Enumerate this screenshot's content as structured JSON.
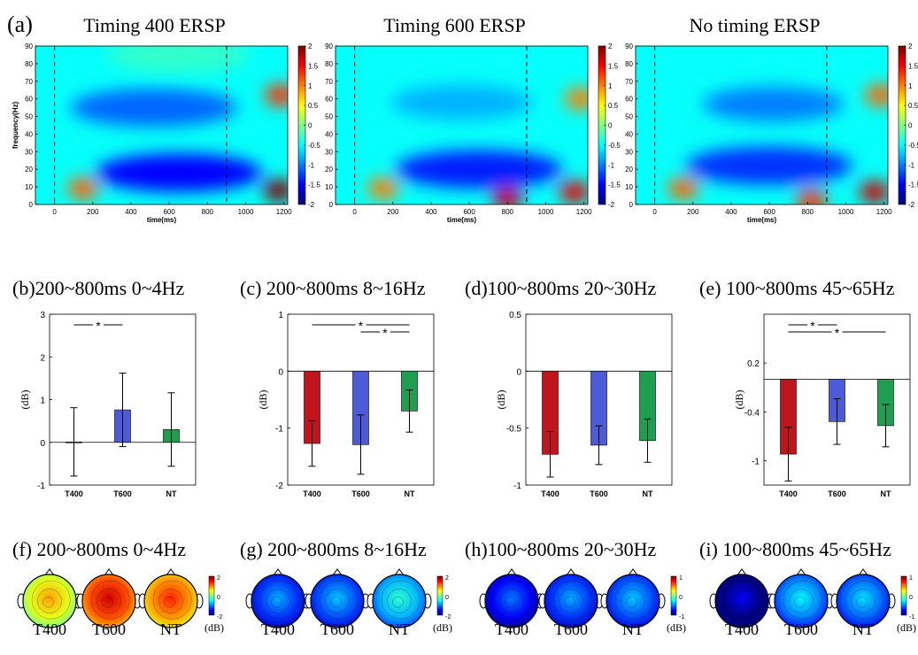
{
  "panel_a": {
    "letter": "(a)",
    "titles": [
      "Timing 400 ERSP",
      "Timing 600 ERSP",
      "No timing ERSP"
    ],
    "ylabel": "frequency(Hz)",
    "xlabel": "time(ms)",
    "xticks": [
      "0",
      "200",
      "400",
      "600",
      "800",
      "1000",
      "1200"
    ],
    "yticks": [
      "0",
      "10",
      "20",
      "30",
      "40",
      "50",
      "60",
      "70",
      "80",
      "90"
    ],
    "colorbar_ticks": [
      "2",
      "1.5",
      "1",
      "0.5",
      "0",
      "-0.5",
      "-1",
      "-1.5",
      "-2"
    ]
  },
  "chart_data": [
    {
      "type": "heatmap",
      "title": "Timing 400 ERSP",
      "xlabel": "time(ms)",
      "ylabel": "frequency(Hz)",
      "xlim": [
        -100,
        1220
      ],
      "ylim": [
        0,
        90
      ],
      "clim": [
        -2,
        2
      ],
      "markers_ms": [
        0,
        900
      ],
      "blobs": [
        {
          "t": 650,
          "f": 18,
          "value": -1.5
        },
        {
          "t": 520,
          "f": 55,
          "value": -1.1
        },
        {
          "t": 150,
          "f": 9,
          "value": 1.1
        },
        {
          "t": 1170,
          "f": 8,
          "value": 2.2
        },
        {
          "t": 1180,
          "f": 62,
          "value": 1.3
        },
        {
          "t": 650,
          "f": 85,
          "value": -0.3
        }
      ]
    },
    {
      "type": "heatmap",
      "title": "Timing 600 ERSP",
      "xlabel": "time(ms)",
      "ylabel": "frequency(Hz)",
      "xlim": [
        -100,
        1220
      ],
      "ylim": [
        0,
        90
      ],
      "clim": [
        -2,
        2
      ],
      "markers_ms": [
        0,
        900
      ],
      "blobs": [
        {
          "t": 650,
          "f": 20,
          "value": -1.4
        },
        {
          "t": 560,
          "f": 58,
          "value": -0.8
        },
        {
          "t": 150,
          "f": 9,
          "value": 1.0
        },
        {
          "t": 1150,
          "f": 7,
          "value": 1.6
        },
        {
          "t": 800,
          "f": 3,
          "value": 1.7
        },
        {
          "t": 1180,
          "f": 60,
          "value": 1.0
        }
      ]
    },
    {
      "type": "heatmap",
      "title": "No timing ERSP",
      "xlabel": "time(ms)",
      "ylabel": "frequency(Hz)",
      "xlim": [
        -100,
        1220
      ],
      "ylim": [
        0,
        90
      ],
      "clim": [
        -2,
        2
      ],
      "markers_ms": [
        0,
        900
      ],
      "blobs": [
        {
          "t": 600,
          "f": 22,
          "value": -1.3
        },
        {
          "t": 620,
          "f": 57,
          "value": -1.0
        },
        {
          "t": 150,
          "f": 9,
          "value": 1.1
        },
        {
          "t": 1150,
          "f": 7,
          "value": 1.7
        },
        {
          "t": 820,
          "f": 2,
          "value": 1.3
        },
        {
          "t": 1180,
          "f": 62,
          "value": 1.1
        }
      ]
    },
    {
      "type": "bar",
      "title": "(b)200~800ms 0~4Hz",
      "ylabel": "(dB)",
      "categories": [
        "T400",
        "T600",
        "NT"
      ],
      "values": [
        0.01,
        0.76,
        0.3
      ],
      "errors": [
        0.8,
        0.86,
        0.86
      ],
      "colors": [
        "#c0151d",
        "#4d5bd8",
        "#1e9e4f"
      ],
      "ylim": [
        -1,
        3
      ],
      "yticks": [
        "3",
        "2",
        "1",
        "0",
        "-1"
      ],
      "significance": [
        {
          "between": [
            "T400",
            "T600"
          ],
          "label": "*"
        }
      ]
    },
    {
      "type": "bar",
      "title": "(c) 200~800ms 8~16Hz",
      "ylabel": "(dB)",
      "categories": [
        "T400",
        "T600",
        "NT"
      ],
      "values": [
        -1.27,
        -1.29,
        -0.7
      ],
      "errors": [
        0.4,
        0.52,
        0.37
      ],
      "colors": [
        "#c0151d",
        "#4d5bd8",
        "#1e9e4f"
      ],
      "ylim": [
        -2,
        1
      ],
      "yticks": [
        "1",
        "0",
        "-1",
        "-2"
      ],
      "significance": [
        {
          "between": [
            "T400",
            "NT"
          ],
          "label": "*"
        },
        {
          "between": [
            "T600",
            "NT"
          ],
          "label": "*"
        }
      ]
    },
    {
      "type": "bar",
      "title": "(d)100~800ms 20~30Hz",
      "ylabel": "(dB)",
      "categories": [
        "T400",
        "T600",
        "NT"
      ],
      "values": [
        -0.73,
        -0.65,
        -0.61
      ],
      "errors": [
        0.2,
        0.17,
        0.19
      ],
      "colors": [
        "#c0151d",
        "#4d5bd8",
        "#1e9e4f"
      ],
      "ylim": [
        -1,
        0.5
      ],
      "yticks": [
        "0.5",
        "0",
        "-0.5",
        "-1"
      ],
      "significance": []
    },
    {
      "type": "bar",
      "title": "(e) 100~800ms 45~65Hz",
      "ylabel": "(dB)",
      "categories": [
        "T400",
        "T600",
        "NT"
      ],
      "values": [
        -0.92,
        -0.52,
        -0.57
      ],
      "errors": [
        0.33,
        0.28,
        0.26
      ],
      "colors": [
        "#c0151d",
        "#4d5bd8",
        "#1e9e4f"
      ],
      "ylim": [
        -1.3,
        0.8
      ],
      "yticks": [
        "0.2",
        "-0.4",
        "-1"
      ],
      "significance": [
        {
          "between": [
            "T400",
            "T600"
          ],
          "label": "*"
        },
        {
          "between": [
            "T400",
            "NT"
          ],
          "label": "*"
        }
      ]
    }
  ],
  "topo_panels": [
    {
      "title": "(f) 200~800ms 0~4Hz",
      "labels": [
        "T400",
        "T600",
        "NT"
      ],
      "unit": "(dB)",
      "colorbar_ticks": [
        "2",
        "0",
        "-2"
      ],
      "levels": [
        0.4,
        1.2,
        0.9
      ]
    },
    {
      "title": "(g) 200~800ms 8~16Hz",
      "labels": [
        "T400",
        "T600",
        "NT"
      ],
      "unit": "(dB)",
      "colorbar_ticks": [
        "2",
        "0",
        "-2"
      ],
      "levels": [
        -1.3,
        -1.2,
        -0.8
      ]
    },
    {
      "title": "(h)100~800ms 20~30Hz",
      "labels": [
        "T400",
        "T600",
        "NT"
      ],
      "unit": "(dB)",
      "colorbar_ticks": [
        "1",
        "0",
        "-1"
      ],
      "levels": [
        -0.75,
        -0.65,
        -0.6
      ]
    },
    {
      "title": "(i) 100~800ms 45~65Hz",
      "labels": [
        "T400",
        "T600",
        "NT"
      ],
      "unit": "(dB)",
      "colorbar_ticks": [
        "1",
        "0",
        "-1"
      ],
      "levels": [
        -1.0,
        -0.5,
        -0.55
      ]
    }
  ]
}
